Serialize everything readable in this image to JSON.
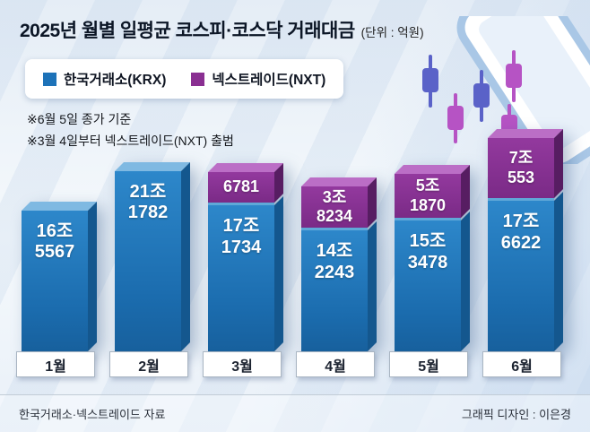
{
  "header": {
    "title": "2025년 월별 일평균 코스피·코스닥 거래대금",
    "unit": "(단위 : 억원)"
  },
  "legend": {
    "items": [
      {
        "label": "한국거래소(KRX)",
        "color": "#1d72b8"
      },
      {
        "label": "넥스트레이드(NXT)",
        "color": "#8a2f92"
      }
    ]
  },
  "notes": [
    "※6월 5일 종가 기준",
    "※3월 4일부터 넥스트레이드(NXT) 출범"
  ],
  "footer": {
    "source": "한국거래소·넥스트레이드 자료",
    "credit": "그래픽 디자인 : 이은경"
  },
  "chart_data": {
    "type": "bar",
    "stacked": true,
    "unit": "억원",
    "title": "2025년 월별 일평균 코스피·코스닥 거래대금",
    "categories": [
      "1월",
      "2월",
      "3월",
      "4월",
      "5월",
      "6월"
    ],
    "series": [
      {
        "name": "한국거래소(KRX)",
        "color": "#1d72b8",
        "values": [
          165567,
          211782,
          171734,
          142243,
          153478,
          176622
        ],
        "labels": [
          [
            "16조",
            "5567"
          ],
          [
            "21조",
            "1782"
          ],
          [
            "17조",
            "1734"
          ],
          [
            "14조",
            "2243"
          ],
          [
            "15조",
            "3478"
          ],
          [
            "17조",
            "6622"
          ]
        ]
      },
      {
        "name": "넥스트레이드(NXT)",
        "color": "#8a2f92",
        "values": [
          null,
          null,
          6781,
          38234,
          51870,
          70553
        ],
        "labels": [
          null,
          null,
          [
            "6781"
          ],
          [
            "3조",
            "8234"
          ],
          [
            "5조",
            "1870"
          ],
          [
            "7조",
            "553"
          ]
        ]
      }
    ]
  }
}
